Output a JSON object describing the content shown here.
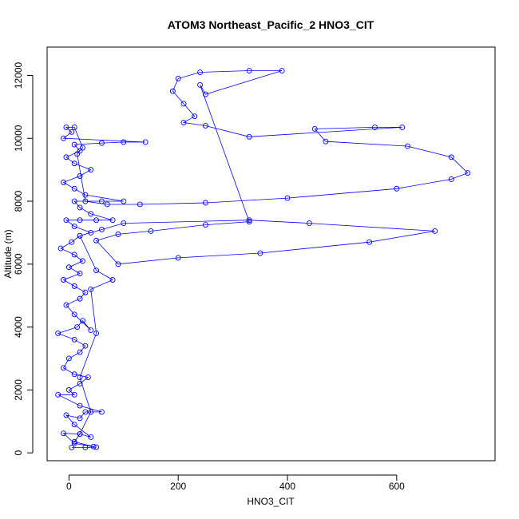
{
  "chart_data": {
    "type": "scatter",
    "title": "ATOM3 Northeast_Pacific_2 HNO3_CIT",
    "xlabel": "HNO3_CIT",
    "ylabel": "Altitude (m)",
    "xlim": [
      -40,
      780
    ],
    "ylim": [
      -250,
      12900
    ],
    "x_ticks": [
      0,
      200,
      400,
      600
    ],
    "y_ticks": [
      0,
      2000,
      4000,
      6000,
      8000,
      10000,
      12000
    ],
    "grid": false,
    "legend": "none",
    "marker": "open-circle",
    "connect_points": true,
    "color": "#0000ff",
    "series": [
      {
        "values": [
          [
            5,
            170
          ],
          [
            30,
            170
          ],
          [
            50,
            180
          ],
          [
            10,
            300
          ],
          [
            -10,
            620
          ],
          [
            20,
            600
          ],
          [
            40,
            500
          ],
          [
            10,
            900
          ],
          [
            -5,
            1200
          ],
          [
            20,
            1100
          ],
          [
            30,
            1300
          ],
          [
            60,
            1300
          ],
          [
            20,
            1500
          ],
          [
            -20,
            1850
          ],
          [
            10,
            1850
          ],
          [
            0,
            2000
          ],
          [
            20,
            2200
          ],
          [
            35,
            2400
          ],
          [
            10,
            2500
          ],
          [
            -10,
            2700
          ],
          [
            0,
            3000
          ],
          [
            20,
            3200
          ],
          [
            30,
            3400
          ],
          [
            10,
            3600
          ],
          [
            -20,
            3800
          ],
          [
            15,
            4000
          ],
          [
            25,
            4200
          ],
          [
            40,
            3900
          ],
          [
            10,
            4400
          ],
          [
            -5,
            4700
          ],
          [
            20,
            4900
          ],
          [
            30,
            5100
          ],
          [
            10,
            5300
          ],
          [
            -10,
            5500
          ],
          [
            20,
            5700
          ],
          [
            0,
            5900
          ],
          [
            25,
            6100
          ],
          [
            10,
            6300
          ],
          [
            -15,
            6500
          ],
          [
            5,
            6700
          ],
          [
            20,
            6900
          ],
          [
            40,
            7000
          ],
          [
            10,
            7200
          ],
          [
            -5,
            7400
          ],
          [
            20,
            7400
          ],
          [
            50,
            7400
          ],
          [
            80,
            7400
          ],
          [
            40,
            7600
          ],
          [
            20,
            7800
          ],
          [
            10,
            8000
          ],
          [
            60,
            8000
          ],
          [
            100,
            8000
          ],
          [
            30,
            8200
          ],
          [
            10,
            8400
          ],
          [
            -10,
            8600
          ],
          [
            20,
            8800
          ],
          [
            40,
            9000
          ],
          [
            10,
            9200
          ],
          [
            -5,
            9400
          ],
          [
            20,
            9600
          ],
          [
            10,
            9800
          ],
          [
            60,
            9850
          ],
          [
            100,
            9880
          ],
          [
            140,
            9880
          ],
          [
            -10,
            10000
          ],
          [
            5,
            10200
          ],
          [
            -5,
            10350
          ],
          [
            10,
            10350
          ],
          [
            25,
            9700
          ],
          [
            15,
            9500
          ],
          [
            30,
            8000
          ],
          [
            70,
            7900
          ],
          [
            130,
            7900
          ],
          [
            250,
            7950
          ],
          [
            400,
            8100
          ],
          [
            600,
            8400
          ],
          [
            700,
            8700
          ],
          [
            730,
            8900
          ],
          [
            700,
            9400
          ],
          [
            620,
            9750
          ],
          [
            470,
            9900
          ],
          [
            450,
            10300
          ],
          [
            560,
            10350
          ],
          [
            610,
            10350
          ],
          [
            330,
            10050
          ],
          [
            250,
            10400
          ],
          [
            210,
            10500
          ],
          [
            230,
            10700
          ],
          [
            210,
            11100
          ],
          [
            190,
            11500
          ],
          [
            200,
            11900
          ],
          [
            240,
            12100
          ],
          [
            330,
            12150
          ],
          [
            390,
            12150
          ],
          [
            250,
            11400
          ],
          [
            240,
            11700
          ],
          [
            330,
            7350
          ],
          [
            250,
            7250
          ],
          [
            150,
            7050
          ],
          [
            90,
            6950
          ],
          [
            50,
            6750
          ],
          [
            90,
            6000
          ],
          [
            200,
            6200
          ],
          [
            350,
            6350
          ],
          [
            550,
            6700
          ],
          [
            670,
            7050
          ],
          [
            440,
            7300
          ],
          [
            330,
            7400
          ],
          [
            100,
            7300
          ],
          [
            60,
            7100
          ],
          [
            20,
            6900
          ],
          [
            50,
            5800
          ],
          [
            80,
            5500
          ],
          [
            40,
            5200
          ],
          [
            50,
            3800
          ],
          [
            20,
            2400
          ],
          [
            40,
            1300
          ],
          [
            20,
            600
          ],
          [
            10,
            350
          ],
          [
            45,
            200
          ]
        ]
      }
    ]
  }
}
